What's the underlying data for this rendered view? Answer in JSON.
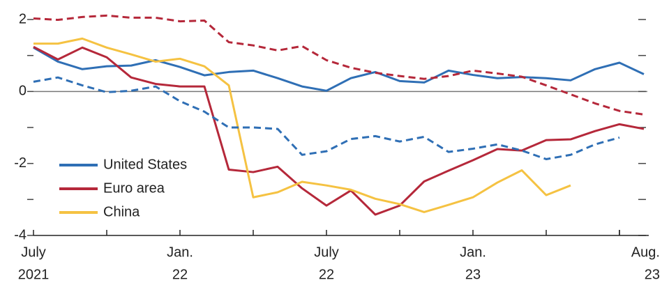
{
  "chart_data": {
    "type": "line",
    "xlim": [
      0,
      25
    ],
    "ylim": [
      -4,
      2
    ],
    "yticks": [
      -4,
      -2,
      0,
      2
    ],
    "yminorticks": [
      1,
      -1,
      -3
    ],
    "xticks": [
      {
        "value": 0,
        "label": [
          "July",
          "2021"
        ]
      },
      {
        "value": 6,
        "label": [
          "Jan.",
          "22"
        ]
      },
      {
        "value": 12,
        "label": [
          "July",
          "22"
        ]
      },
      {
        "value": 18,
        "label": [
          "Jan.",
          "23"
        ]
      },
      {
        "value": 25,
        "label": [
          "Aug.",
          "23"
        ]
      }
    ],
    "xminorticks": [
      3,
      9,
      15,
      21,
      24
    ],
    "x": [
      0,
      1,
      2,
      3,
      4,
      5,
      6,
      7,
      8,
      9,
      10,
      11,
      12,
      13,
      14,
      15,
      16,
      17,
      18,
      19,
      20,
      21,
      22,
      23,
      24,
      25
    ],
    "legend": "lower left",
    "series": [
      {
        "name": "United States",
        "color": "#2f6fb5",
        "dash": false,
        "values": [
          1.22,
          0.83,
          0.62,
          0.7,
          0.72,
          0.87,
          0.68,
          0.45,
          0.54,
          0.58,
          0.37,
          0.14,
          0.02,
          0.37,
          0.54,
          0.29,
          0.25,
          0.58,
          0.46,
          0.37,
          0.4,
          0.37,
          0.31,
          0.62,
          0.8,
          0.48
        ]
      },
      {
        "name": "Euro area",
        "color": "#b5283a",
        "dash": false,
        "values": [
          1.24,
          0.89,
          1.22,
          0.95,
          0.39,
          0.21,
          0.14,
          0.14,
          -2.17,
          -2.24,
          -2.09,
          -2.69,
          -3.17,
          -2.75,
          -3.42,
          -3.17,
          -2.5,
          -2.2,
          -1.91,
          -1.6,
          -1.64,
          -1.35,
          -1.33,
          -1.1,
          -0.91,
          -1.04
        ]
      },
      {
        "name": "China",
        "color": "#f5c242",
        "dash": false,
        "values": [
          1.33,
          1.33,
          1.47,
          1.22,
          1.03,
          0.83,
          0.91,
          0.7,
          0.17,
          -2.94,
          -2.8,
          -2.51,
          -2.61,
          -2.73,
          -2.98,
          -3.13,
          -3.35,
          -3.15,
          -2.94,
          -2.53,
          -2.19,
          -2.88,
          -2.61,
          null,
          null,
          null
        ]
      },
      {
        "color": "#2f6fb5",
        "dash": true,
        "values": [
          0.27,
          0.39,
          0.17,
          -0.02,
          0.02,
          0.14,
          -0.27,
          -0.56,
          -1.0,
          -1.0,
          -1.04,
          -1.76,
          -1.66,
          -1.32,
          -1.24,
          -1.39,
          -1.26,
          -1.68,
          -1.59,
          -1.47,
          -1.64,
          -1.88,
          -1.76,
          -1.47,
          -1.28,
          null
        ]
      },
      {
        "color": "#b5283a",
        "dash": true,
        "values": [
          2.03,
          1.99,
          2.07,
          2.11,
          2.05,
          2.05,
          1.95,
          1.97,
          1.37,
          1.28,
          1.14,
          1.26,
          0.87,
          0.66,
          0.52,
          0.43,
          0.35,
          0.43,
          0.58,
          0.5,
          0.41,
          0.17,
          -0.08,
          -0.33,
          -0.54,
          -0.64
        ]
      }
    ]
  }
}
